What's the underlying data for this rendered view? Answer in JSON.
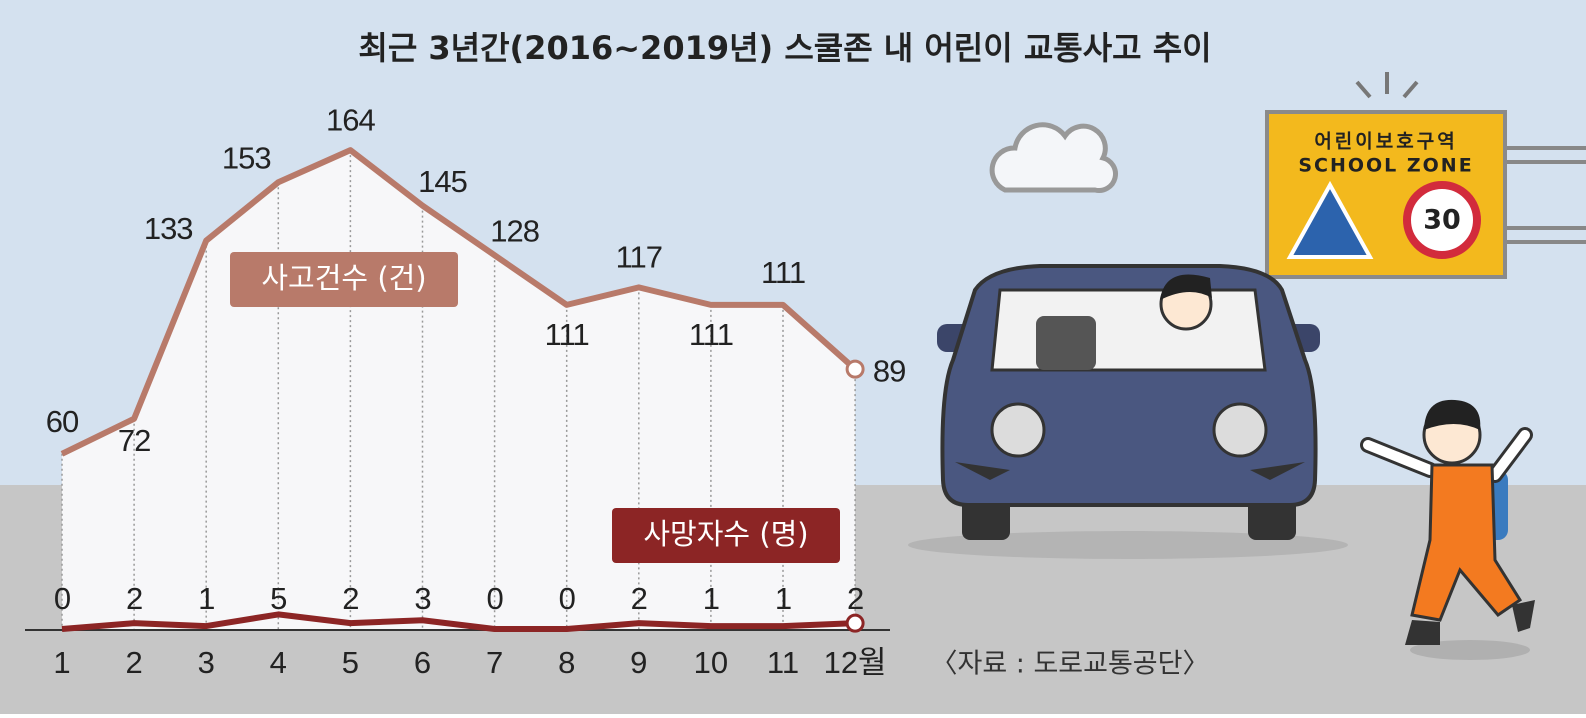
{
  "chart_data": {
    "type": "line",
    "title": "최근 3년간(2016~2019년) 스쿨존 내 어린이 교통사고 추이",
    "categories": [
      "1",
      "2",
      "3",
      "4",
      "5",
      "6",
      "7",
      "8",
      "9",
      "10",
      "11",
      "12월"
    ],
    "series": [
      {
        "name": "사고건수 (건)",
        "color": "#b87a6a",
        "values": [
          60,
          72,
          133,
          153,
          164,
          145,
          128,
          111,
          117,
          111,
          111,
          89
        ]
      },
      {
        "name": "사망자수 (명)",
        "color": "#8c2525",
        "values": [
          0,
          2,
          1,
          5,
          2,
          3,
          0,
          0,
          2,
          1,
          1,
          2
        ]
      }
    ],
    "source": "〈자료 : 도로교통공단〉"
  },
  "sign": {
    "korean": "어린이보호구역",
    "english": "SCHOOL ZONE",
    "speed_limit": 30
  }
}
